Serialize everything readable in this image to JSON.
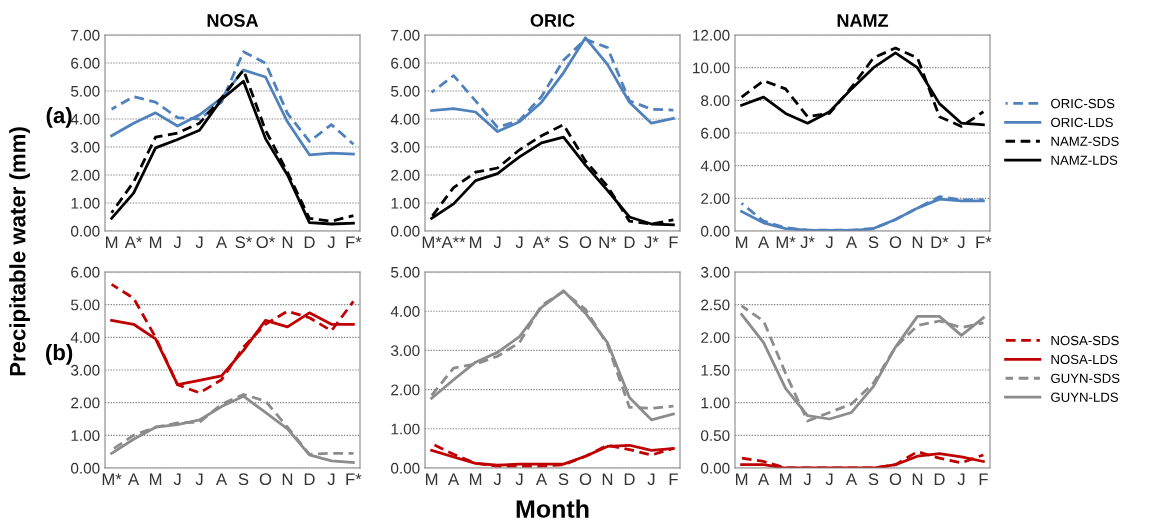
{
  "chart_data": [
    {
      "type": "line",
      "title": "NOSA",
      "ylabel": "Precipitable water (mm)",
      "annotations": [
        "(a)"
      ],
      "categories": [
        "M",
        "A*",
        "M",
        "J",
        "J",
        "A",
        "S*",
        "O*",
        "N",
        "D",
        "J",
        "F*"
      ],
      "ylim": [
        0,
        7
      ],
      "yticks": [
        {
          "value": 0,
          "label": "0.00"
        },
        {
          "value": 1,
          "label": "1.00"
        },
        {
          "value": 2,
          "label": "2.00"
        },
        {
          "value": 3,
          "label": "3.00"
        },
        {
          "value": 4,
          "label": "4.00"
        },
        {
          "value": 5,
          "label": "5.00"
        },
        {
          "value": 6,
          "label": "6.00"
        },
        {
          "value": 7,
          "label": "7.00"
        }
      ],
      "grid": "y",
      "legend": false,
      "marker": "none",
      "series": [
        {
          "color": "#4f81bd",
          "line_style": "dashed",
          "values": [
            4.35,
            4.8,
            4.6,
            4.05,
            4.0,
            4.6,
            6.4,
            6.0,
            4.2,
            3.2,
            3.8,
            3.1
          ]
        },
        {
          "color": "#4f81bd",
          "line_style": "solid",
          "values": [
            3.4,
            3.85,
            4.22,
            3.75,
            4.15,
            4.75,
            5.75,
            5.5,
            3.9,
            2.72,
            2.78,
            2.75
          ]
        },
        {
          "color": "#000000",
          "line_style": "dashed",
          "values": [
            0.65,
            1.75,
            3.35,
            3.5,
            3.85,
            4.75,
            5.75,
            3.6,
            2.1,
            0.45,
            0.35,
            0.55
          ]
        },
        {
          "color": "#000000",
          "line_style": "solid",
          "values": [
            0.45,
            1.35,
            2.97,
            3.27,
            3.6,
            4.7,
            5.35,
            3.3,
            2.0,
            0.3,
            0.25,
            0.28
          ]
        }
      ]
    },
    {
      "type": "line",
      "title": "ORIC",
      "categories": [
        "M*",
        "A**",
        "M",
        "J",
        "J",
        "A*",
        "S",
        "O",
        "N*",
        "D",
        "J*",
        "F"
      ],
      "ylim": [
        0,
        7
      ],
      "yticks": [
        {
          "value": 0,
          "label": "0.00"
        },
        {
          "value": 1,
          "label": "1.00"
        },
        {
          "value": 2,
          "label": "2.00"
        },
        {
          "value": 3,
          "label": "3.00"
        },
        {
          "value": 4,
          "label": "4.00"
        },
        {
          "value": 5,
          "label": "5.00"
        },
        {
          "value": 6,
          "label": "6.00"
        },
        {
          "value": 7,
          "label": "7.00"
        }
      ],
      "grid": "y",
      "legend": false,
      "marker": "none",
      "series": [
        {
          "color": "#4f81bd",
          "line_style": "dashed",
          "values": [
            4.95,
            5.55,
            4.65,
            3.7,
            3.95,
            4.8,
            6.1,
            6.85,
            6.55,
            4.65,
            4.35,
            4.32
          ]
        },
        {
          "color": "#4f81bd",
          "line_style": "solid",
          "values": [
            4.3,
            4.37,
            4.25,
            3.55,
            3.9,
            4.6,
            5.65,
            6.9,
            5.95,
            4.6,
            3.85,
            4.02
          ]
        },
        {
          "color": "#000000",
          "line_style": "dashed",
          "values": [
            0.5,
            1.55,
            2.1,
            2.25,
            2.9,
            3.4,
            3.8,
            2.5,
            1.6,
            0.35,
            0.25,
            0.4
          ]
        },
        {
          "color": "#000000",
          "line_style": "solid",
          "values": [
            0.45,
            0.97,
            1.8,
            2.05,
            2.65,
            3.15,
            3.35,
            2.35,
            1.45,
            0.5,
            0.25,
            0.22
          ]
        }
      ]
    },
    {
      "type": "line",
      "title": "NAMZ",
      "categories": [
        "M",
        "A",
        "M*",
        "J*",
        "J",
        "A",
        "S",
        "O",
        "N",
        "D*",
        "J",
        "F*"
      ],
      "ylim": [
        0,
        12
      ],
      "yticks": [
        {
          "value": 0,
          "label": "0.00"
        },
        {
          "value": 2,
          "label": "2.00"
        },
        {
          "value": 4,
          "label": "4.00"
        },
        {
          "value": 6,
          "label": "6.00"
        },
        {
          "value": 8,
          "label": "8.00"
        },
        {
          "value": 10,
          "label": "10.00"
        },
        {
          "value": 12,
          "label": "12.00"
        }
      ],
      "grid": "y",
      "legend": "right",
      "marker": "none",
      "series": [
        {
          "name": "ORIC-SDS",
          "color": "#4f81bd",
          "line_style": "dashed",
          "values": [
            1.7,
            0.6,
            0.2,
            0.05,
            0.05,
            0.05,
            0.15,
            0.7,
            1.4,
            2.1,
            1.9,
            1.9
          ]
        },
        {
          "name": "ORIC-LDS",
          "color": "#4f81bd",
          "line_style": "solid",
          "values": [
            1.2,
            0.5,
            0.15,
            0.05,
            0.03,
            0.03,
            0.15,
            0.7,
            1.4,
            1.95,
            1.85,
            1.85
          ]
        },
        {
          "name": "NAMZ-SDS",
          "color": "#000000",
          "line_style": "dashed",
          "values": [
            8.2,
            9.2,
            8.7,
            7.0,
            7.2,
            8.8,
            10.6,
            11.2,
            10.6,
            7.0,
            6.4,
            7.3
          ]
        },
        {
          "name": "NAMZ-LDS",
          "color": "#000000",
          "line_style": "solid",
          "values": [
            7.7,
            8.2,
            7.2,
            6.6,
            7.3,
            8.7,
            10.0,
            10.9,
            10.0,
            7.8,
            6.6,
            6.5
          ]
        }
      ]
    },
    {
      "type": "line",
      "annotations": [
        "(b)"
      ],
      "categories": [
        "M*",
        "A",
        "M",
        "J",
        "J",
        "A",
        "S",
        "O",
        "N",
        "D",
        "J",
        "F*"
      ],
      "ylim": [
        0,
        6
      ],
      "yticks": [
        {
          "value": 0,
          "label": "0.00"
        },
        {
          "value": 1,
          "label": "1.00"
        },
        {
          "value": 2,
          "label": "2.00"
        },
        {
          "value": 3,
          "label": "3.00"
        },
        {
          "value": 4,
          "label": "4.00"
        },
        {
          "value": 5,
          "label": "5.00"
        },
        {
          "value": 6,
          "label": "6.00"
        }
      ],
      "grid": "y",
      "legend": false,
      "marker": "none",
      "series": [
        {
          "color": "#c00000",
          "line_style": "dashed",
          "values": [
            5.62,
            5.2,
            4.0,
            2.55,
            2.3,
            2.7,
            3.7,
            4.4,
            4.8,
            4.6,
            4.2,
            5.1
          ]
        },
        {
          "color": "#c00000",
          "line_style": "solid",
          "values": [
            4.52,
            4.4,
            3.95,
            2.55,
            2.68,
            2.82,
            3.6,
            4.52,
            4.32,
            4.75,
            4.4,
            4.4
          ]
        },
        {
          "color": "#8c8c8c",
          "line_style": "dashed",
          "values": [
            0.55,
            1.0,
            1.25,
            1.38,
            1.4,
            1.95,
            2.25,
            2.05,
            1.25,
            0.42,
            0.45,
            0.45
          ]
        },
        {
          "color": "#8c8c8c",
          "line_style": "solid",
          "values": [
            0.45,
            0.88,
            1.25,
            1.33,
            1.47,
            1.88,
            2.2,
            1.7,
            1.2,
            0.4,
            0.22,
            0.17
          ]
        }
      ]
    },
    {
      "type": "line",
      "xlabel": "Month",
      "categories": [
        "M",
        "A",
        "M",
        "J",
        "J",
        "A",
        "S",
        "O",
        "N",
        "D",
        "J",
        "F"
      ],
      "ylim": [
        0,
        5
      ],
      "yticks": [
        {
          "value": 0,
          "label": "0.00"
        },
        {
          "value": 1,
          "label": "1.00"
        },
        {
          "value": 2,
          "label": "2.00"
        },
        {
          "value": 3,
          "label": "3.00"
        },
        {
          "value": 4,
          "label": "4.00"
        },
        {
          "value": 5,
          "label": "5.00"
        }
      ],
      "grid": "y",
      "legend": false,
      "marker": "none",
      "series": [
        {
          "color": "#c00000",
          "line_style": "dashed",
          "values": [
            0.62,
            0.35,
            0.12,
            0.05,
            0.05,
            0.05,
            0.08,
            0.3,
            0.58,
            0.47,
            0.33,
            0.5
          ]
        },
        {
          "color": "#c00000",
          "line_style": "solid",
          "values": [
            0.45,
            0.28,
            0.12,
            0.07,
            0.1,
            0.1,
            0.1,
            0.3,
            0.55,
            0.58,
            0.45,
            0.5
          ]
        },
        {
          "color": "#8c8c8c",
          "line_style": "dashed",
          "values": [
            1.85,
            2.55,
            2.65,
            2.85,
            3.2,
            4.15,
            4.5,
            4.05,
            3.15,
            1.55,
            1.52,
            1.58
          ]
        },
        {
          "color": "#8c8c8c",
          "line_style": "solid",
          "values": [
            1.78,
            2.25,
            2.7,
            2.95,
            3.35,
            4.1,
            4.52,
            3.95,
            3.2,
            1.8,
            1.23,
            1.38
          ]
        }
      ]
    },
    {
      "type": "line",
      "categories": [
        "M",
        "A",
        "M",
        "J",
        "J",
        "A",
        "S",
        "O",
        "N",
        "D",
        "J",
        "F"
      ],
      "ylim": [
        0,
        3
      ],
      "yticks": [
        {
          "value": 0,
          "label": "0.00"
        },
        {
          "value": 0.5,
          "label": "0.50"
        },
        {
          "value": 1,
          "label": "1.00"
        },
        {
          "value": 1.5,
          "label": "1.50"
        },
        {
          "value": 2,
          "label": "2.00"
        },
        {
          "value": 2.5,
          "label": "2.50"
        },
        {
          "value": 3,
          "label": "3.00"
        }
      ],
      "grid": "y",
      "legend": "right",
      "marker": "none",
      "series": [
        {
          "name": "NOSA-SDS",
          "color": "#c00000",
          "line_style": "dashed",
          "values": [
            0.15,
            0.1,
            0.0,
            0.0,
            0.0,
            0.0,
            0.0,
            0.05,
            0.25,
            0.15,
            0.08,
            0.2
          ]
        },
        {
          "name": "NOSA-LDS",
          "color": "#c00000",
          "line_style": "solid",
          "values": [
            0.05,
            0.05,
            0.0,
            0.0,
            0.0,
            0.0,
            0.0,
            0.05,
            0.18,
            0.22,
            0.17,
            0.1
          ]
        },
        {
          "name": "GUYN-SDS",
          "color": "#8c8c8c",
          "line_style": "dashed",
          "values": [
            2.48,
            2.25,
            1.45,
            0.72,
            0.85,
            0.98,
            1.3,
            1.85,
            2.18,
            2.25,
            2.15,
            2.22
          ]
        },
        {
          "name": "GUYN-LDS",
          "color": "#8c8c8c",
          "line_style": "solid",
          "values": [
            2.35,
            1.92,
            1.22,
            0.8,
            0.75,
            0.85,
            1.25,
            1.85,
            2.32,
            2.32,
            2.03,
            2.3
          ]
        }
      ]
    }
  ]
}
